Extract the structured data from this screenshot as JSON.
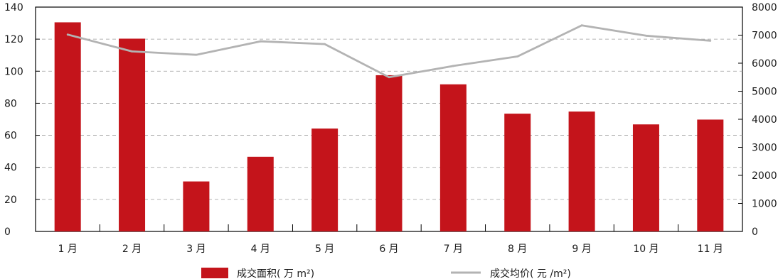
{
  "chart_data": {
    "type": "bar",
    "categories": [
      "1 月",
      "2 月",
      "3 月",
      "4 月",
      "5 月",
      "6 月",
      "7 月",
      "8 月",
      "9 月",
      "10 月",
      "11 月"
    ],
    "series": [
      {
        "name": "成交面积( 万 m²)",
        "type": "bar",
        "axis": "left",
        "color": "#c4141b",
        "values": [
          130.5,
          120.3,
          31.2,
          46.6,
          64.2,
          97.5,
          91.8,
          73.5,
          74.8,
          66.8,
          69.8
        ]
      },
      {
        "name": "成交均价( 元 /m²)",
        "type": "line",
        "axis": "right",
        "color": "#b3b3b3",
        "values": [
          7020,
          6420,
          6300,
          6780,
          6680,
          5500,
          5900,
          6240,
          7350,
          6980,
          6800
        ]
      }
    ],
    "ylim_left": [
      0,
      140
    ],
    "yticks_left": [
      "0",
      "20",
      "40",
      "60",
      "80",
      "100",
      "120",
      "140"
    ],
    "ylim_right": [
      0,
      8000
    ],
    "yticks_right": [
      "0",
      "1000",
      "2000",
      "3000",
      "4000",
      "5000",
      "6000",
      "7000",
      "8000"
    ],
    "grid": "horizontal-dashed",
    "legend_position": "bottom"
  }
}
